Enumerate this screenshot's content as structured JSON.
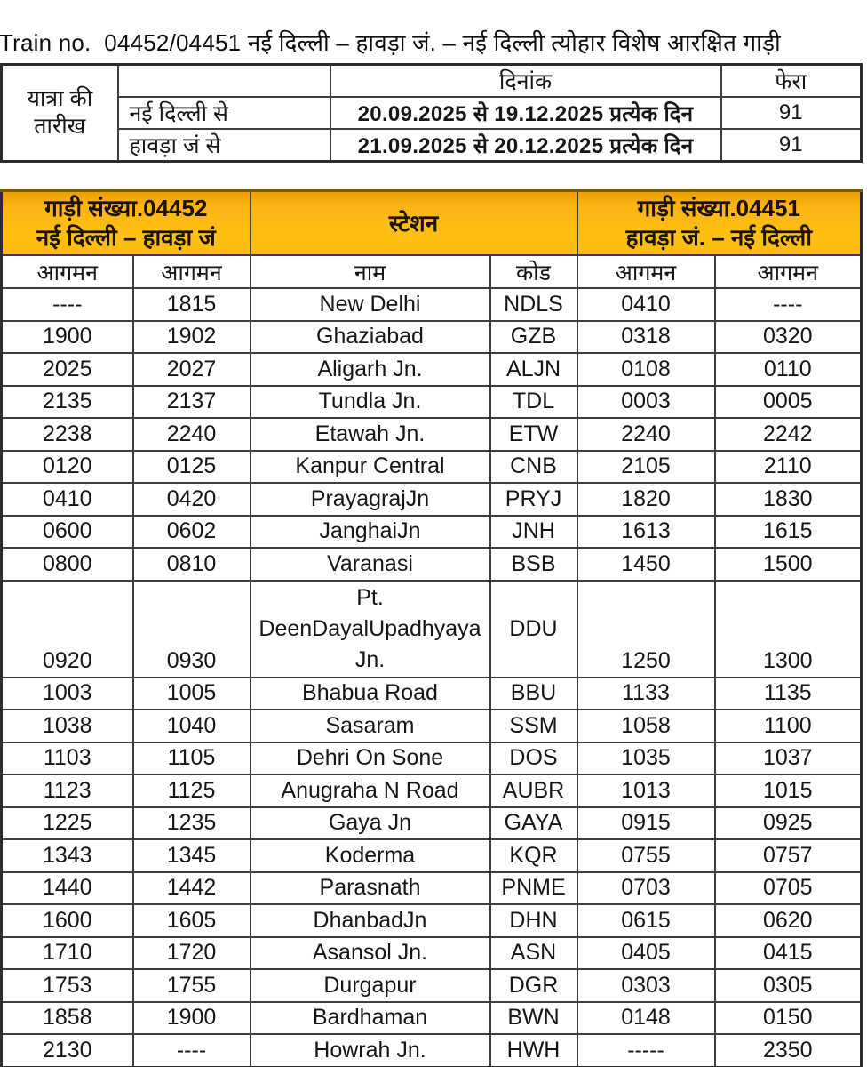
{
  "title": "Train no.  04452/04451 नई दिल्ली – हावड़ा जं. – नई दिल्ली त्योहार विशेष आरक्षित गाड़ी",
  "accent_color": "#FDB913",
  "top_table": {
    "journey_line1": "यात्रा की",
    "journey_line2": "तारीख",
    "date_label": "दिनांक",
    "trips_label": "फेरा",
    "rows": [
      {
        "from": "नई दिल्ली से",
        "range": "20.09.2025 से  19.12.2025 प्रत्येक दिन",
        "trips": "91"
      },
      {
        "from": "हावड़ा जं से",
        "range": "21.09.2025 से  20.12.2025 प्रत्येक दिन",
        "trips": "91"
      }
    ]
  },
  "schedule": {
    "left_train": {
      "line1": "गाड़ी संख्या.04452",
      "line2": "नई दिल्ली – हावड़ा जं"
    },
    "station_label": "स्टेशन",
    "right_train": {
      "line1": "गाड़ी संख्या.04451",
      "line2": "हावड़ा जं. – नई दिल्ली"
    },
    "columns": [
      "आगमन",
      "आगमन",
      "नाम",
      "कोड",
      "आगमन",
      "आगमन"
    ],
    "rows": [
      {
        "cells": [
          "----",
          "1815",
          "New Delhi",
          "NDLS",
          "0410",
          "----"
        ]
      },
      {
        "cells": [
          "1900",
          "1902",
          "Ghaziabad",
          "GZB",
          "0318",
          "0320"
        ]
      },
      {
        "cells": [
          "2025",
          "2027",
          "Aligarh Jn.",
          "ALJN",
          "0108",
          "0110"
        ]
      },
      {
        "cells": [
          "2135",
          "2137",
          "Tundla Jn.",
          "TDL",
          "0003",
          "0005"
        ]
      },
      {
        "cells": [
          "2238",
          "2240",
          "Etawah Jn.",
          "ETW",
          "2240",
          "2242"
        ]
      },
      {
        "cells": [
          "0120",
          "0125",
          "Kanpur Central",
          "CNB",
          "2105",
          "2110"
        ]
      },
      {
        "cells": [
          "0410",
          "0420",
          "PrayagrajJn",
          "PRYJ",
          "1820",
          "1830"
        ]
      },
      {
        "cells": [
          "0600",
          "0602",
          "JanghaiJn",
          "JNH",
          "1613",
          "1615"
        ]
      },
      {
        "cells": [
          "0800",
          "0810",
          "Varanasi",
          "BSB",
          "1450",
          "1500"
        ]
      },
      {
        "cells": [
          "0920",
          "0930",
          "Pt. DeenDayalUpadhyaya Jn.",
          "DDU",
          "1250",
          "1300"
        ],
        "tall": true,
        "name_lines": [
          "Pt.",
          "DeenDayalUpadhyaya",
          "Jn."
        ]
      },
      {
        "cells": [
          "1003",
          "1005",
          "Bhabua Road",
          "BBU",
          "1133",
          "1135"
        ]
      },
      {
        "cells": [
          "1038",
          "1040",
          "Sasaram",
          "SSM",
          "1058",
          "1100"
        ]
      },
      {
        "cells": [
          "1103",
          "1105",
          "Dehri On Sone",
          "DOS",
          "1035",
          "1037"
        ]
      },
      {
        "cells": [
          "1123",
          "1125",
          "Anugraha N Road",
          "AUBR",
          "1013",
          "1015"
        ]
      },
      {
        "cells": [
          "1225",
          "1235",
          "Gaya Jn",
          "GAYA",
          "0915",
          "0925"
        ]
      },
      {
        "cells": [
          "1343",
          "1345",
          "Koderma",
          "KQR",
          "0755",
          "0757"
        ]
      },
      {
        "cells": [
          "1440",
          "1442",
          "Parasnath",
          "PNME",
          "0703",
          "0705"
        ]
      },
      {
        "cells": [
          "1600",
          "1605",
          "DhanbadJn",
          "DHN",
          "0615",
          "0620"
        ]
      },
      {
        "cells": [
          "1710",
          "1720",
          "Asansol Jn.",
          "ASN",
          "0405",
          "0415"
        ]
      },
      {
        "cells": [
          "1753",
          "1755",
          "Durgapur",
          "DGR",
          "0303",
          "0305"
        ]
      },
      {
        "cells": [
          "1858",
          "1900",
          "Bardhaman",
          "BWN",
          "0148",
          "0150"
        ]
      },
      {
        "cells": [
          "2130",
          "----",
          "Howrah Jn.",
          "HWH",
          "-----",
          "2350"
        ]
      }
    ]
  }
}
